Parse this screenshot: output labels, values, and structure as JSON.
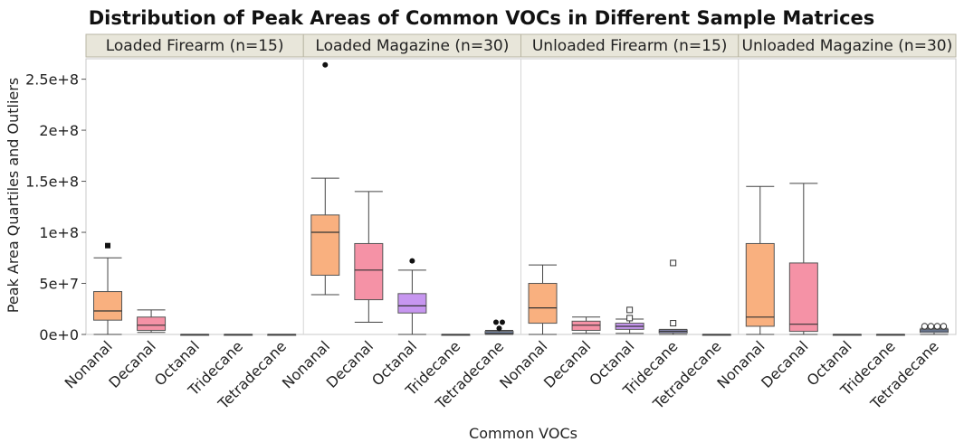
{
  "chart_data": {
    "type": "box",
    "title": "Distribution of Peak Areas of Common VOCs in Different Sample Matrices",
    "ylabel": "Peak Area Quartiles and Outliers",
    "xlabel": "Common VOCs",
    "ylim": [
      0,
      270000000
    ],
    "yticks": [
      {
        "value": 0,
        "label": "0e+0"
      },
      {
        "value": 50000000,
        "label": "5e+7"
      },
      {
        "value": 100000000,
        "label": "1e+8"
      },
      {
        "value": 150000000,
        "label": "1.5e+8"
      },
      {
        "value": 200000000,
        "label": "2e+8"
      },
      {
        "value": 250000000,
        "label": "2.5e+8"
      }
    ],
    "colors": {
      "Nonanal": "#f9b07f",
      "Decanal": "#f592a6",
      "Octanal": "#c796f0",
      "Tridecane": "#a6a6e6",
      "Tetradecane": "#9eb9ea"
    },
    "panels": [
      {
        "label": "Loaded Firearm (n=15)",
        "boxes": [
          {
            "category": "Nonanal",
            "min": 0,
            "q1": 14000000,
            "median": 23000000,
            "q3": 42000000,
            "max": 75000000,
            "outliers": [
              {
                "value": 87000000,
                "marker": "square"
              }
            ]
          },
          {
            "category": "Decanal",
            "min": 2000000,
            "q1": 4000000,
            "median": 9000000,
            "q3": 17000000,
            "max": 24000000,
            "outliers": []
          },
          {
            "category": "Octanal",
            "min": 0,
            "q1": 0,
            "median": 0,
            "q3": 0,
            "max": 0,
            "outliers": []
          },
          {
            "category": "Tridecane",
            "min": 0,
            "q1": 0,
            "median": 0,
            "q3": 0,
            "max": 0,
            "outliers": []
          },
          {
            "category": "Tetradecane",
            "min": 0,
            "q1": 0,
            "median": 0,
            "q3": 0,
            "max": 0,
            "outliers": []
          }
        ]
      },
      {
        "label": "Loaded Magazine (n=30)",
        "boxes": [
          {
            "category": "Nonanal",
            "min": 39000000,
            "q1": 58000000,
            "median": 100000000,
            "q3": 117000000,
            "max": 153000000,
            "outliers": [
              {
                "value": 264000000,
                "marker": "dot"
              }
            ]
          },
          {
            "category": "Decanal",
            "min": 12000000,
            "q1": 34000000,
            "median": 63000000,
            "q3": 89000000,
            "max": 140000000,
            "outliers": []
          },
          {
            "category": "Octanal",
            "min": 0,
            "q1": 21000000,
            "median": 28000000,
            "q3": 40000000,
            "max": 63000000,
            "outliers": [
              {
                "value": 72000000,
                "marker": "dot"
              }
            ]
          },
          {
            "category": "Tridecane",
            "min": 0,
            "q1": 0,
            "median": 0,
            "q3": 0,
            "max": 0,
            "outliers": []
          },
          {
            "category": "Tetradecane",
            "min": 0,
            "q1": 500000,
            "median": 1500000,
            "q3": 3000000,
            "max": 4000000,
            "outliers": [
              {
                "value": 6000000,
                "marker": "dot"
              },
              {
                "value": 12000000,
                "marker": "dot"
              },
              {
                "value": 12000000,
                "marker": "dot"
              }
            ]
          }
        ]
      },
      {
        "label": "Unloaded Firearm (n=15)",
        "boxes": [
          {
            "category": "Nonanal",
            "min": 0,
            "q1": 11000000,
            "median": 26000000,
            "q3": 50000000,
            "max": 68000000,
            "outliers": []
          },
          {
            "category": "Decanal",
            "min": 1000000,
            "q1": 4000000,
            "median": 9000000,
            "q3": 13000000,
            "max": 17000000,
            "outliers": []
          },
          {
            "category": "Octanal",
            "min": 1000000,
            "q1": 5000000,
            "median": 8000000,
            "q3": 11000000,
            "max": 15000000,
            "outliers": [
              {
                "value": 16000000,
                "marker": "open-square"
              },
              {
                "value": 24000000,
                "marker": "open-square"
              }
            ]
          },
          {
            "category": "Tridecane",
            "min": 0,
            "q1": 1500000,
            "median": 3000000,
            "q3": 4500000,
            "max": 5000000,
            "outliers": [
              {
                "value": 11000000,
                "marker": "open-square"
              },
              {
                "value": 70000000,
                "marker": "open-square"
              }
            ]
          },
          {
            "category": "Tetradecane",
            "min": 0,
            "q1": 0,
            "median": 0,
            "q3": 0,
            "max": 0,
            "outliers": []
          }
        ]
      },
      {
        "label": "Unloaded Magazine (n=30)",
        "boxes": [
          {
            "category": "Nonanal",
            "min": 0,
            "q1": 8000000,
            "median": 17000000,
            "q3": 89000000,
            "max": 145000000,
            "outliers": []
          },
          {
            "category": "Decanal",
            "min": 0,
            "q1": 3000000,
            "median": 10000000,
            "q3": 70000000,
            "max": 148000000,
            "outliers": []
          },
          {
            "category": "Octanal",
            "min": 0,
            "q1": 0,
            "median": 0,
            "q3": 0,
            "max": 0,
            "outliers": []
          },
          {
            "category": "Tridecane",
            "min": 0,
            "q1": 0,
            "median": 0,
            "q3": 0,
            "max": 0,
            "outliers": []
          },
          {
            "category": "Tetradecane",
            "min": 0,
            "q1": 2000000,
            "median": 3500000,
            "q3": 5000000,
            "max": 6000000,
            "outliers": [
              {
                "value": 8000000,
                "marker": "open-circle"
              },
              {
                "value": 8000000,
                "marker": "open-circle"
              },
              {
                "value": 8000000,
                "marker": "open-circle"
              },
              {
                "value": 8000000,
                "marker": "open-circle"
              }
            ]
          }
        ]
      }
    ]
  }
}
